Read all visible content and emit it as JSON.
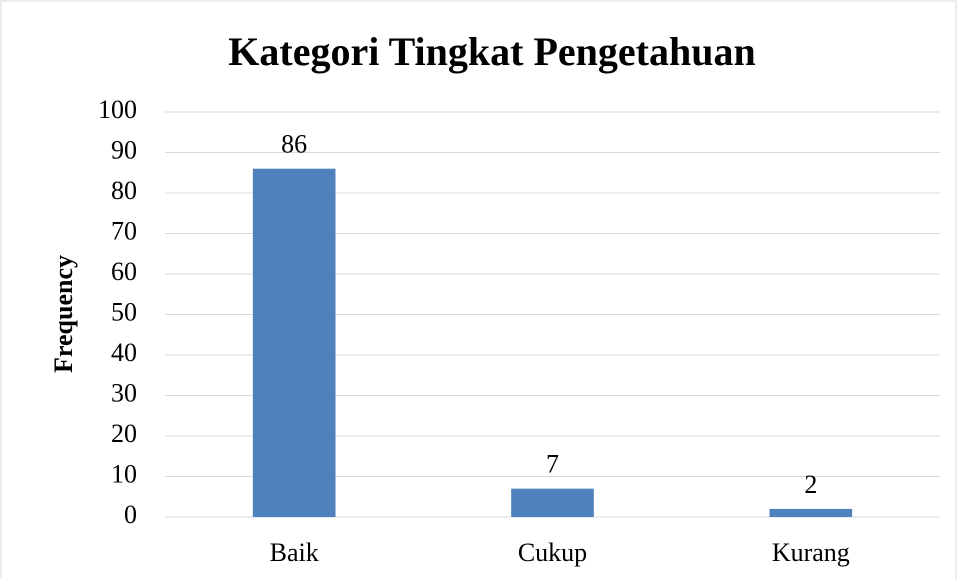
{
  "chart_data": {
    "type": "bar",
    "title": "Kategori Tingkat Pengetahuan",
    "y_label": "Frequency",
    "categories": [
      "Baik",
      "Cukup",
      "Kurang"
    ],
    "values": [
      86,
      7,
      2
    ],
    "color": "#4f81bd",
    "ylim": [
      0,
      100
    ],
    "yticks": [
      0,
      10,
      20,
      30,
      40,
      50,
      60,
      70,
      80,
      90,
      100
    ],
    "grid": true
  }
}
